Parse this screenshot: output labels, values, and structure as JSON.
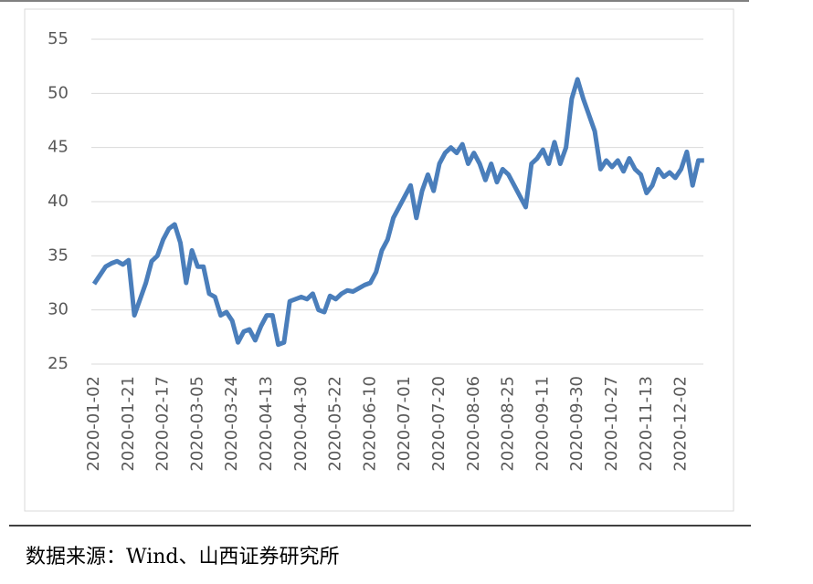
{
  "chart_data": {
    "type": "line",
    "categories": [
      "2020-01-02",
      null,
      null,
      null,
      null,
      null,
      "2020-01-21",
      null,
      null,
      null,
      null,
      null,
      "2020-02-17",
      null,
      null,
      null,
      null,
      null,
      "2020-03-05",
      null,
      null,
      null,
      null,
      null,
      "2020-03-24",
      null,
      null,
      null,
      null,
      null,
      "2020-04-13",
      null,
      null,
      null,
      null,
      null,
      "2020-04-30",
      null,
      null,
      null,
      null,
      null,
      "2020-05-22",
      null,
      null,
      null,
      null,
      null,
      "2020-06-10",
      null,
      null,
      null,
      null,
      null,
      "2020-07-01",
      null,
      null,
      null,
      null,
      null,
      "2020-07-20",
      null,
      null,
      null,
      null,
      null,
      "2020-08-06",
      null,
      null,
      null,
      null,
      null,
      "2020-08-25",
      null,
      null,
      null,
      null,
      null,
      "2020-09-11",
      null,
      null,
      null,
      null,
      null,
      "2020-09-30",
      null,
      null,
      null,
      null,
      null,
      "2020-10-27",
      null,
      null,
      null,
      null,
      null,
      "2020-11-13",
      null,
      null,
      null,
      null,
      null,
      "2020-12-02",
      null,
      null,
      null,
      null
    ],
    "series": [
      {
        "color": "#4a7ebb",
        "values": [
          32.4,
          33.2,
          34.0,
          34.3,
          34.5,
          34.2,
          34.6,
          29.5,
          31.0,
          32.5,
          34.5,
          35.0,
          36.5,
          37.5,
          37.9,
          36.2,
          32.5,
          35.5,
          34.0,
          34.0,
          31.5,
          31.2,
          29.5,
          29.8,
          29.0,
          27.0,
          28.0,
          28.2,
          27.2,
          28.5,
          29.5,
          29.5,
          26.8,
          27.0,
          30.8,
          31.0,
          31.2,
          31.0,
          31.5,
          30.0,
          29.8,
          31.3,
          31.0,
          31.5,
          31.8,
          31.7,
          32.0,
          32.3,
          32.5,
          33.5,
          35.5,
          36.5,
          38.5,
          39.5,
          40.5,
          41.5,
          38.5,
          41.0,
          42.5,
          41.0,
          43.5,
          44.5,
          45.0,
          44.5,
          45.3,
          43.5,
          44.5,
          43.5,
          42.0,
          43.5,
          41.8,
          43.0,
          42.5,
          41.5,
          40.5,
          39.5,
          43.5,
          44.0,
          44.8,
          43.5,
          45.5,
          43.5,
          45.0,
          49.5,
          51.3,
          49.5,
          48.0,
          46.5,
          43.0,
          43.8,
          43.2,
          43.8,
          42.8,
          44.0,
          43.0,
          42.5,
          40.8,
          41.5,
          43.0,
          42.3,
          42.7,
          42.2,
          43.0,
          44.6,
          41.5,
          43.8,
          43.8
        ]
      }
    ],
    "ylim": [
      25,
      55
    ],
    "yticks": [
      25,
      30,
      35,
      40,
      45,
      50,
      55
    ],
    "grid": true
  },
  "source": "数据来源：Wind、山西证券研究所"
}
